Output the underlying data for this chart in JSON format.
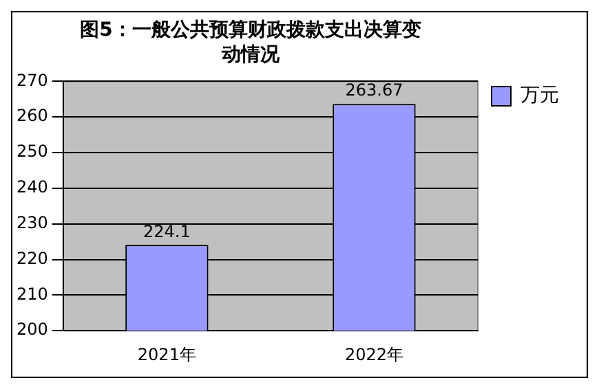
{
  "chart_data": {
    "type": "bar",
    "title": "图5：一般公共预算财政拨款支出决算变动情况",
    "categories": [
      "2021年",
      "2022年"
    ],
    "series": [
      {
        "name": "万元",
        "color": "#9999ff",
        "values": [
          224.1,
          263.67
        ]
      }
    ],
    "ylim": [
      200,
      270
    ],
    "yticks": [
      200,
      210,
      220,
      230,
      240,
      250,
      260,
      270
    ],
    "grid": "y",
    "legend": "top right",
    "data_labels": true
  }
}
